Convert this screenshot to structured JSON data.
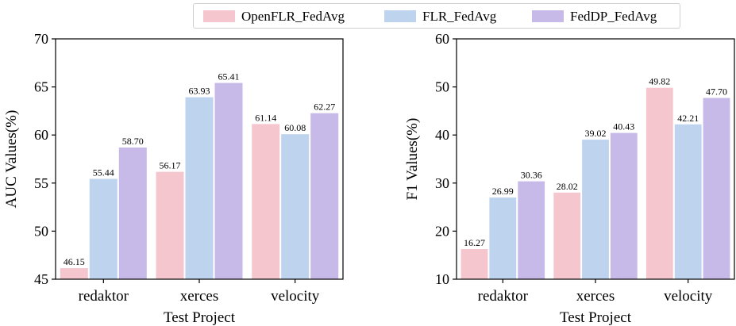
{
  "colors": {
    "OpenFLR_FedAvg": "#f6c6cf",
    "FLR_FedAvg": "#bdd3ee",
    "FedDP_FedAvg": "#c7b9e8"
  },
  "legend": [
    "OpenFLR_FedAvg",
    "FLR_FedAvg",
    "FedDP_FedAvg"
  ],
  "chart_data": [
    {
      "type": "bar",
      "categories": [
        "redaktor",
        "xerces",
        "velocity"
      ],
      "series": [
        {
          "name": "OpenFLR_FedAvg",
          "values": [
            46.15,
            56.17,
            61.14
          ],
          "labels": [
            "46.15",
            "56.17",
            "61.14"
          ]
        },
        {
          "name": "FLR_FedAvg",
          "values": [
            55.44,
            63.93,
            60.08
          ],
          "labels": [
            "55.44",
            "63.93",
            "60.08"
          ]
        },
        {
          "name": "FedDP_FedAvg",
          "values": [
            58.7,
            65.41,
            62.27
          ],
          "labels": [
            "58.70",
            "65.41",
            "62.27"
          ]
        }
      ],
      "xlabel": "Test Project",
      "ylabel": "AUC Values(%)",
      "ylim": [
        45,
        70
      ],
      "yticks": [
        45,
        50,
        55,
        60,
        65,
        70
      ],
      "legend": "top, shared"
    },
    {
      "type": "bar",
      "categories": [
        "redaktor",
        "xerces",
        "velocity"
      ],
      "series": [
        {
          "name": "OpenFLR_FedAvg",
          "values": [
            16.27,
            28.02,
            49.82
          ],
          "labels": [
            "16.27",
            "28.02",
            "49.82"
          ]
        },
        {
          "name": "FLR_FedAvg",
          "values": [
            26.99,
            39.02,
            42.21
          ],
          "labels": [
            "26.99",
            "39.02",
            "42.21"
          ]
        },
        {
          "name": "FedDP_FedAvg",
          "values": [
            30.36,
            40.43,
            47.7
          ],
          "labels": [
            "30.36",
            "40.43",
            "47.70"
          ]
        }
      ],
      "xlabel": "Test Project",
      "ylabel": "F1 Values(%)",
      "ylim": [
        10,
        60
      ],
      "yticks": [
        10,
        20,
        30,
        40,
        50,
        60
      ],
      "legend": "top, shared"
    }
  ]
}
